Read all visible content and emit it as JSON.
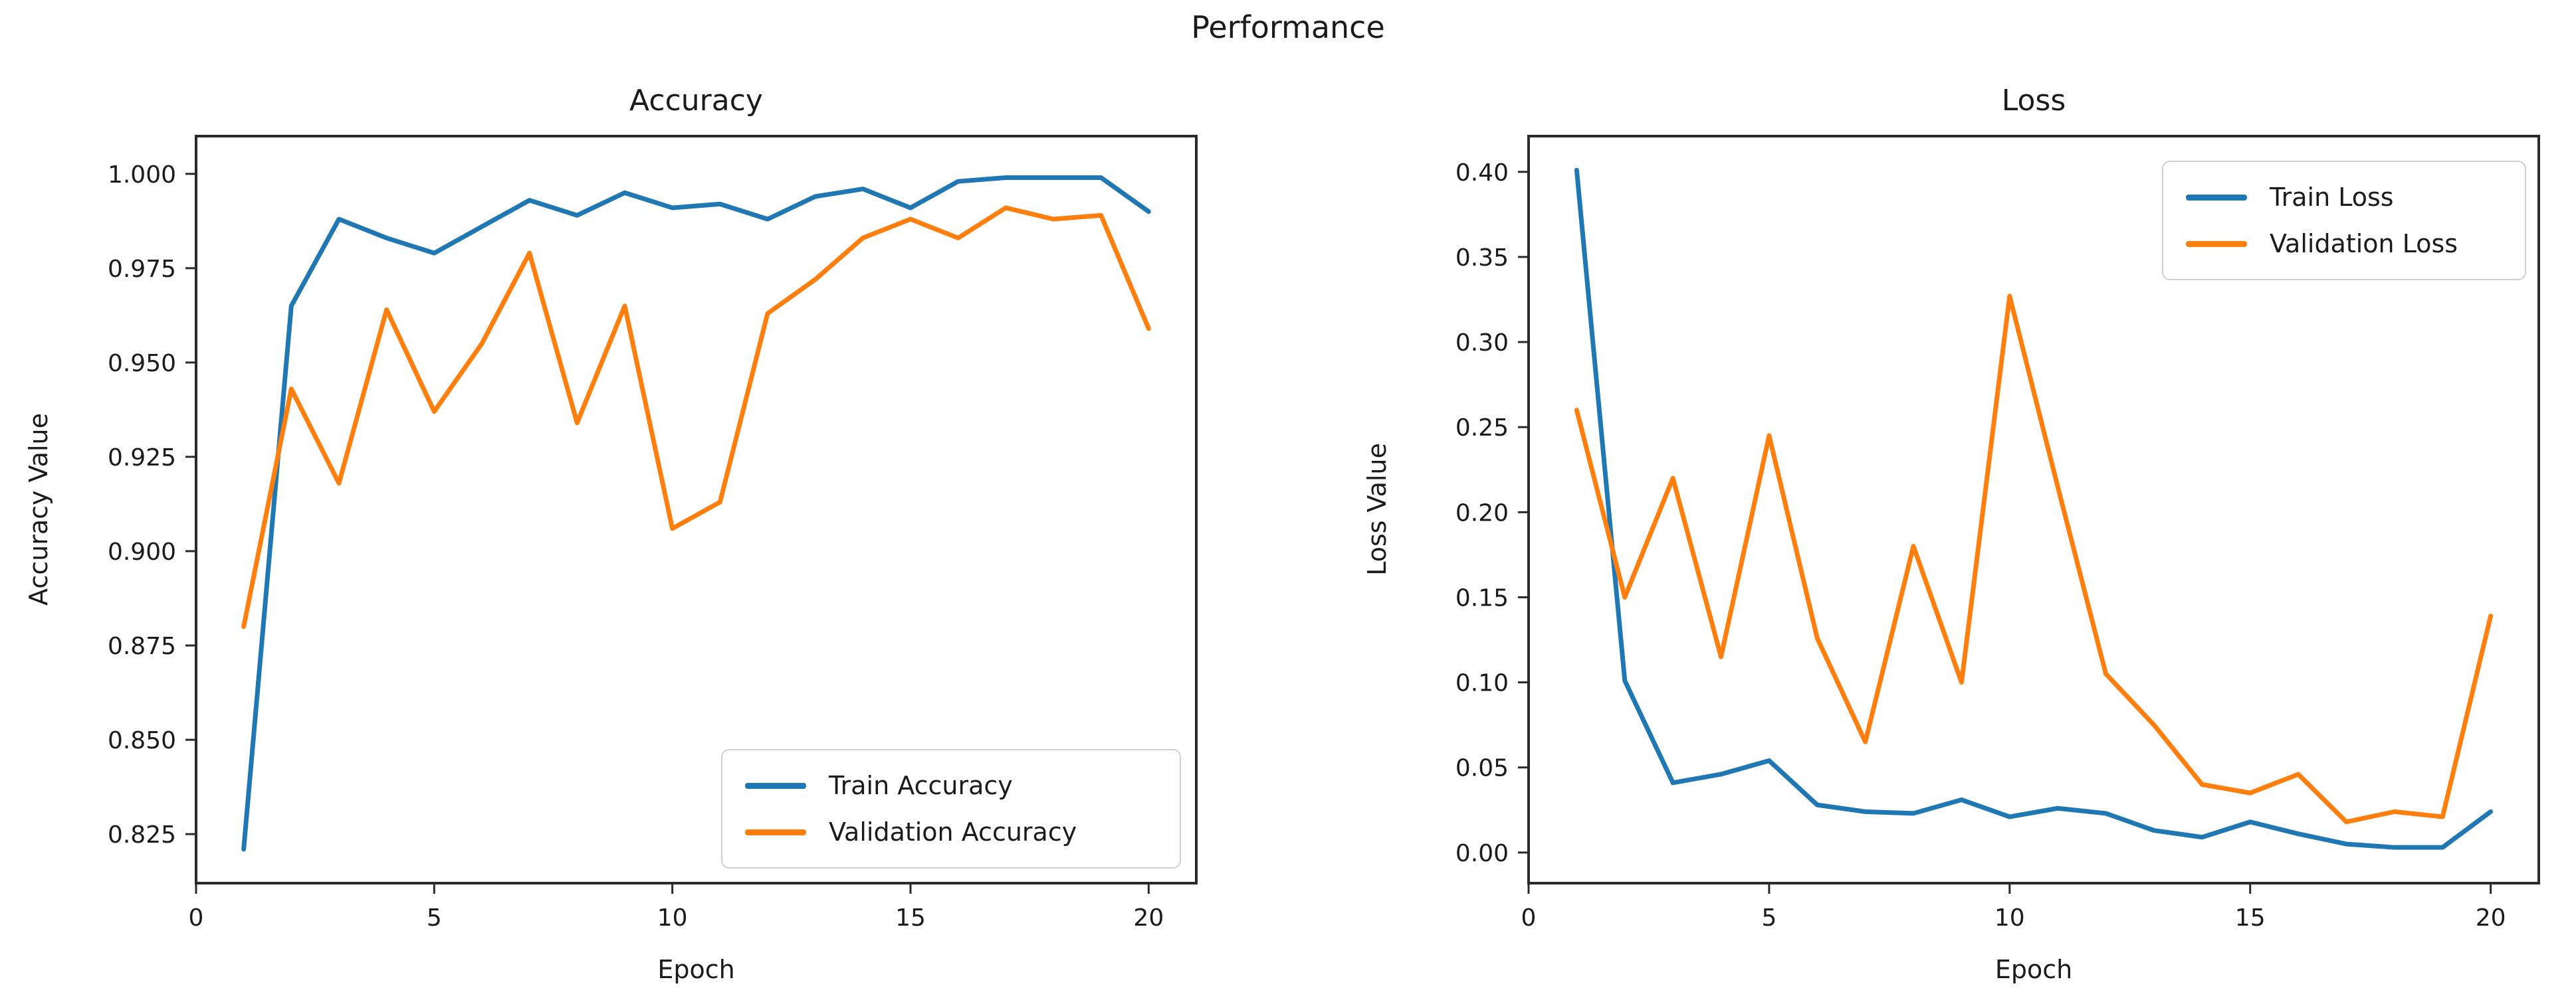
{
  "figure": {
    "suptitle": "Performance",
    "background": "#ffffff",
    "text_color": "#1b1b1b",
    "spine_color": "#2a2a2a"
  },
  "colors": {
    "train": "#1f77b4",
    "validation": "#ff7f0e"
  },
  "chart_data": [
    {
      "type": "line",
      "title": "Accuracy",
      "xlabel": "Epoch",
      "ylabel": "Accuracy Value",
      "x": [
        1,
        2,
        3,
        4,
        5,
        6,
        7,
        8,
        9,
        10,
        11,
        12,
        13,
        14,
        15,
        16,
        17,
        18,
        19,
        20
      ],
      "xlim": [
        0,
        21
      ],
      "ylim": [
        0.812,
        1.01
      ],
      "xticks": {
        "values": [
          0,
          5,
          10,
          15,
          20
        ],
        "labels": [
          "0",
          "5",
          "10",
          "15",
          "20"
        ]
      },
      "yticks": {
        "values": [
          0.825,
          0.85,
          0.875,
          0.9,
          0.925,
          0.95,
          0.975,
          1.0
        ],
        "labels": [
          "0.825",
          "0.850",
          "0.875",
          "0.900",
          "0.925",
          "0.950",
          "0.975",
          "1.000"
        ]
      },
      "grid": false,
      "legend_position": "lower right",
      "series": [
        {
          "name": "Train Accuracy",
          "color_key": "train",
          "values": [
            0.821,
            0.965,
            0.988,
            0.983,
            0.979,
            0.986,
            0.993,
            0.989,
            0.995,
            0.991,
            0.992,
            0.988,
            0.994,
            0.996,
            0.991,
            0.998,
            0.999,
            0.999,
            0.999,
            0.99
          ]
        },
        {
          "name": "Validation Accuracy",
          "color_key": "validation",
          "values": [
            0.88,
            0.943,
            0.918,
            0.964,
            0.937,
            0.955,
            0.979,
            0.934,
            0.965,
            0.906,
            0.913,
            0.963,
            0.972,
            0.983,
            0.988,
            0.983,
            0.991,
            0.988,
            0.989,
            0.959
          ]
        }
      ]
    },
    {
      "type": "line",
      "title": "Loss",
      "xlabel": "Epoch",
      "ylabel": "Loss Value",
      "x": [
        1,
        2,
        3,
        4,
        5,
        6,
        7,
        8,
        9,
        10,
        11,
        12,
        13,
        14,
        15,
        16,
        17,
        18,
        19,
        20
      ],
      "xlim": [
        0,
        21
      ],
      "ylim": [
        -0.018,
        0.421
      ],
      "xticks": {
        "values": [
          0,
          5,
          10,
          15,
          20
        ],
        "labels": [
          "0",
          "5",
          "10",
          "15",
          "20"
        ]
      },
      "yticks": {
        "values": [
          0.0,
          0.05,
          0.1,
          0.15,
          0.2,
          0.25,
          0.3,
          0.35,
          0.4
        ],
        "labels": [
          "0.00",
          "0.05",
          "0.10",
          "0.15",
          "0.20",
          "0.25",
          "0.30",
          "0.35",
          "0.40"
        ]
      },
      "grid": false,
      "legend_position": "upper right",
      "series": [
        {
          "name": "Train Loss",
          "color_key": "train",
          "values": [
            0.401,
            0.101,
            0.041,
            0.046,
            0.054,
            0.028,
            0.024,
            0.023,
            0.031,
            0.021,
            0.026,
            0.023,
            0.013,
            0.009,
            0.018,
            0.011,
            0.005,
            0.003,
            0.003,
            0.024
          ]
        },
        {
          "name": "Validation Loss",
          "color_key": "validation",
          "values": [
            0.26,
            0.15,
            0.22,
            0.115,
            0.245,
            0.126,
            0.065,
            0.18,
            0.1,
            0.327,
            0.215,
            0.105,
            0.075,
            0.04,
            0.035,
            0.046,
            0.018,
            0.024,
            0.021,
            0.139
          ]
        }
      ]
    }
  ]
}
